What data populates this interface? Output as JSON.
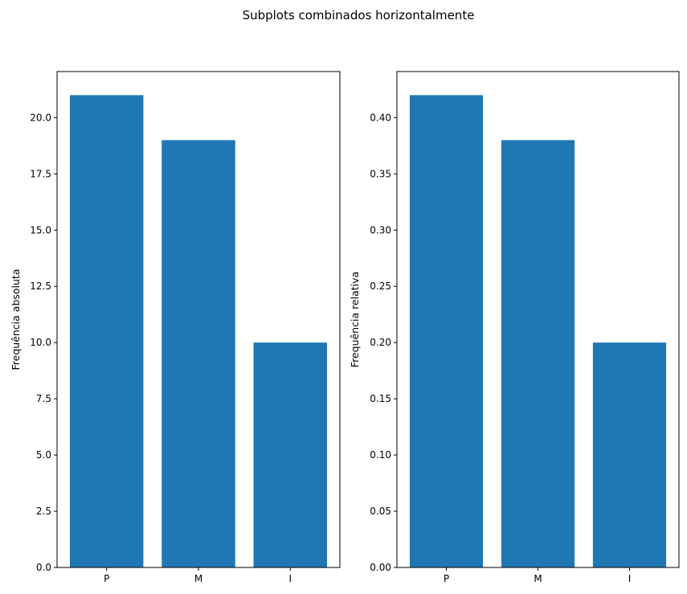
{
  "figure": {
    "suptitle": "Subplots combinados horizontalmente",
    "bar_color": "#1f77b4"
  },
  "chart_data": [
    {
      "type": "bar",
      "categories": [
        "P",
        "M",
        "I"
      ],
      "values": [
        21,
        19,
        10
      ],
      "ylabel": "Frequência absoluta",
      "xlabel": "",
      "ylim": [
        0,
        22.05
      ],
      "yticks": [
        0,
        2.5,
        5,
        7.5,
        10,
        12.5,
        15,
        17.5,
        20
      ],
      "ytick_labels": [
        "0.0",
        "2.5",
        "5.0",
        "7.5",
        "10.0",
        "12.5",
        "15.0",
        "17.5",
        "20.0"
      ],
      "grid": false
    },
    {
      "type": "bar",
      "categories": [
        "P",
        "M",
        "I"
      ],
      "values": [
        0.42,
        0.38,
        0.2
      ],
      "ylabel": "Frequência relativa",
      "xlabel": "",
      "ylim": [
        0,
        0.441
      ],
      "yticks": [
        0,
        0.05,
        0.1,
        0.15,
        0.2,
        0.25,
        0.3,
        0.35,
        0.4
      ],
      "ytick_labels": [
        "0.00",
        "0.05",
        "0.10",
        "0.15",
        "0.20",
        "0.25",
        "0.30",
        "0.35",
        "0.40"
      ],
      "grid": false
    }
  ]
}
